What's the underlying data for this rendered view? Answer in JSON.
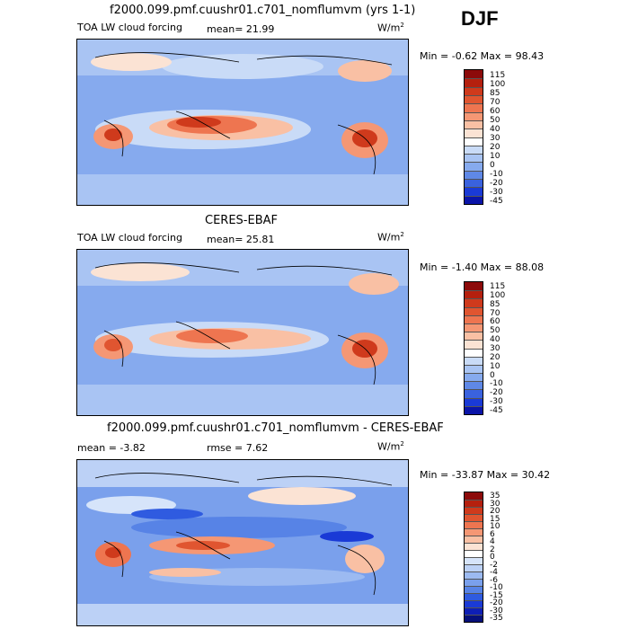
{
  "season": "DJF",
  "panels": [
    {
      "heading": "f2000.099.pmf.cuushr01.c701_nomflumvm (yrs 1-1)",
      "var_label": "TOA LW cloud forcing",
      "stat1": "mean=  21.99",
      "stat2": "",
      "units": "W/m",
      "units_exp": "2",
      "minmax": "Min =  -0.62 Max =  98.43",
      "levels": [
        "115",
        "100",
        "85",
        "70",
        "60",
        "50",
        "40",
        "30",
        "20",
        "10",
        "0",
        "-10",
        "-20",
        "-30",
        "-45"
      ],
      "colors": [
        "#8c0a0a",
        "#b5200e",
        "#cf3a1c",
        "#e05530",
        "#ee7550",
        "#f59774",
        "#f9c0a4",
        "#fbe3d4",
        "#ffffff",
        "#c9dbf7",
        "#a9c4f3",
        "#86aaee",
        "#5f88e6",
        "#3a62de",
        "#1a3ad6",
        "#0a14a8"
      ]
    },
    {
      "heading": "CERES-EBAF",
      "var_label": "TOA LW cloud forcing",
      "stat1": "mean=  25.81",
      "stat2": "",
      "units": "W/m",
      "units_exp": "2",
      "minmax": "Min =  -1.40 Max =  88.08",
      "levels": [
        "115",
        "100",
        "85",
        "70",
        "60",
        "50",
        "40",
        "30",
        "20",
        "10",
        "0",
        "-10",
        "-20",
        "-30",
        "-45"
      ],
      "colors": [
        "#8c0a0a",
        "#b5200e",
        "#cf3a1c",
        "#e05530",
        "#ee7550",
        "#f59774",
        "#f9c0a4",
        "#fbe3d4",
        "#ffffff",
        "#c9dbf7",
        "#a9c4f3",
        "#86aaee",
        "#5f88e6",
        "#3a62de",
        "#1a3ad6",
        "#0a14a8"
      ]
    },
    {
      "heading": "f2000.099.pmf.cuushr01.c701_nomflumvm - CERES-EBAF",
      "var_label": "",
      "stat1": "mean =  -3.82",
      "stat2": "rmse =   7.62",
      "units": "W/m",
      "units_exp": "2",
      "minmax": "Min = -33.87 Max =  30.42",
      "levels": [
        "35",
        "30",
        "20",
        "15",
        "10",
        "6",
        "4",
        "2",
        "0",
        "-2",
        "-4",
        "-6",
        "-10",
        "-15",
        "-20",
        "-30",
        "-35"
      ],
      "colors": [
        "#8c0a0a",
        "#b5200e",
        "#cf3a1c",
        "#e05530",
        "#ee7550",
        "#f59774",
        "#f9c0a4",
        "#fbe3d4",
        "#ffffff",
        "#d6e4fa",
        "#bcd1f6",
        "#9cbaf1",
        "#7aa0ec",
        "#5783e6",
        "#2f5be0",
        "#1a3ad6",
        "#0e1fb5",
        "#06107a"
      ]
    }
  ]
}
